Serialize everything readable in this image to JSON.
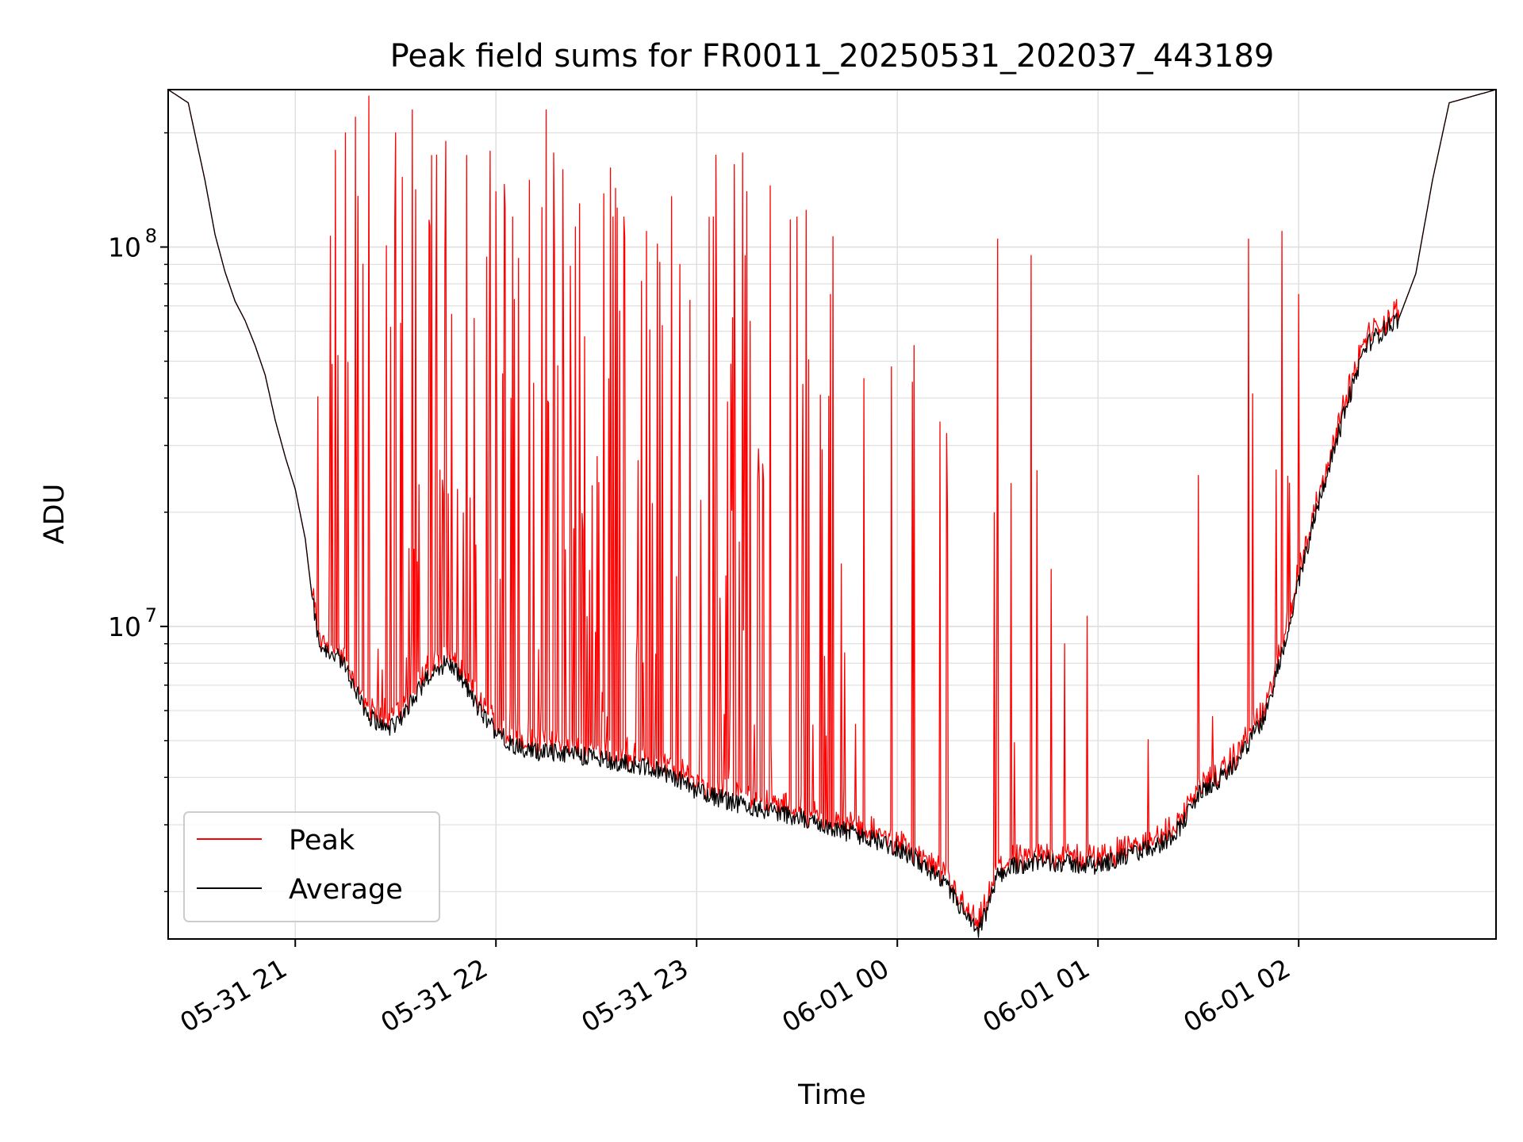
{
  "chart_data": {
    "type": "line",
    "title": "Peak field sums for FR0011_20250531_202037_443189",
    "xlabel": "Time",
    "ylabel": "ADU",
    "y_scale": "log",
    "ylim": [
      1500000,
      260000000
    ],
    "x_unit": "time of day (UTC)",
    "xlim": [
      "05-31 20:22",
      "06-01 02:59"
    ],
    "grid": true,
    "legend_position": "lower-left",
    "x_ticks": [
      {
        "t": "05-31 21:00",
        "label": "05-31 21"
      },
      {
        "t": "05-31 22:00",
        "label": "05-31 22"
      },
      {
        "t": "05-31 23:00",
        "label": "05-31 23"
      },
      {
        "t": "06-01 00:00",
        "label": "06-01 00"
      },
      {
        "t": "06-01 01:00",
        "label": "06-01 01"
      },
      {
        "t": "06-01 02:00",
        "label": "06-01 02"
      }
    ],
    "y_ticks": [
      {
        "v": 10000000,
        "base": "10",
        "exp": "7"
      },
      {
        "v": 100000000,
        "base": "10",
        "exp": "8"
      }
    ],
    "series": [
      {
        "name": "Average",
        "color": "#000000",
        "points": [
          [
            "05-31 20:22",
            260000000
          ],
          [
            "05-31 20:28",
            240000000
          ],
          [
            "05-31 20:33",
            150000000
          ],
          [
            "05-31 20:36",
            108000000
          ],
          [
            "05-31 20:39",
            86000000
          ],
          [
            "05-31 20:42",
            72000000
          ],
          [
            "05-31 20:45",
            64000000
          ],
          [
            "05-31 20:48",
            55000000
          ],
          [
            "05-31 20:51",
            46000000
          ],
          [
            "05-31 20:54",
            35000000
          ],
          [
            "05-31 20:57",
            28000000
          ],
          [
            "05-31 21:00",
            23000000
          ],
          [
            "05-31 21:03",
            17000000
          ],
          [
            "05-31 21:05",
            12000000
          ],
          [
            "05-31 21:07",
            9000000
          ],
          [
            "05-31 21:10",
            8600000
          ],
          [
            "05-31 21:14",
            8100000
          ],
          [
            "05-31 21:18",
            6800000
          ],
          [
            "05-31 21:22",
            5800000
          ],
          [
            "05-31 21:26",
            5500000
          ],
          [
            "05-31 21:30",
            5400000
          ],
          [
            "05-31 21:34",
            6200000
          ],
          [
            "05-31 21:38",
            7000000
          ],
          [
            "05-31 21:42",
            7800000
          ],
          [
            "05-31 21:46",
            8000000
          ],
          [
            "05-31 21:50",
            7200000
          ],
          [
            "05-31 21:55",
            6000000
          ],
          [
            "05-31 22:00",
            5300000
          ],
          [
            "05-31 22:05",
            4900000
          ],
          [
            "05-31 22:10",
            4700000
          ],
          [
            "05-31 22:15",
            4650000
          ],
          [
            "05-31 22:20",
            4650000
          ],
          [
            "05-31 22:30",
            4500000
          ],
          [
            "05-31 22:40",
            4350000
          ],
          [
            "05-31 22:50",
            4150000
          ],
          [
            "05-31 23:00",
            3700000
          ],
          [
            "05-31 23:10",
            3450000
          ],
          [
            "05-31 23:20",
            3300000
          ],
          [
            "05-31 23:30",
            3150000
          ],
          [
            "05-31 23:40",
            2950000
          ],
          [
            "05-31 23:50",
            2800000
          ],
          [
            "06-01 00:00",
            2600000
          ],
          [
            "06-01 00:05",
            2450000
          ],
          [
            "06-01 00:10",
            2250000
          ],
          [
            "06-01 00:15",
            2050000
          ],
          [
            "06-01 00:20",
            1750000
          ],
          [
            "06-01 00:24",
            1550000
          ],
          [
            "06-01 00:27",
            1800000
          ],
          [
            "06-01 00:30",
            2200000
          ],
          [
            "06-01 00:35",
            2350000
          ],
          [
            "06-01 00:45",
            2400000
          ],
          [
            "06-01 00:55",
            2350000
          ],
          [
            "06-01 01:00",
            2350000
          ],
          [
            "06-01 01:10",
            2500000
          ],
          [
            "06-01 01:20",
            2700000
          ],
          [
            "06-01 01:25",
            3000000
          ],
          [
            "06-01 01:30",
            3600000
          ],
          [
            "06-01 01:40",
            4200000
          ],
          [
            "06-01 01:50",
            5800000
          ],
          [
            "06-01 01:55",
            8500000
          ],
          [
            "06-01 02:00",
            13000000
          ],
          [
            "06-01 02:05",
            20000000
          ],
          [
            "06-01 02:10",
            28000000
          ],
          [
            "06-01 02:15",
            40000000
          ],
          [
            "06-01 02:20",
            55000000
          ],
          [
            "06-01 02:25",
            60000000
          ],
          [
            "06-01 02:30",
            65000000
          ],
          [
            "06-01 02:35",
            85000000
          ],
          [
            "06-01 02:40",
            150000000
          ],
          [
            "06-01 02:45",
            240000000
          ],
          [
            "06-01 02:59",
            260000000
          ]
        ]
      },
      {
        "name": "Peak",
        "color": "#ff0000",
        "note_spikes": [
          [
            "05-31 21:05",
            12000000
          ],
          [
            "05-31 21:12",
            180000000
          ],
          [
            "05-31 21:15",
            200000000
          ],
          [
            "05-31 21:18",
            220000000
          ],
          [
            "05-31 21:22",
            250000000
          ],
          [
            "05-31 21:30",
            200000000
          ],
          [
            "05-31 21:35",
            230000000
          ],
          [
            "05-31 21:45",
            190000000
          ],
          [
            "05-31 22:00",
            140000000
          ],
          [
            "05-31 22:05",
            120000000
          ],
          [
            "05-31 22:10",
            150000000
          ],
          [
            "05-31 22:15",
            230000000
          ],
          [
            "05-31 22:20",
            160000000
          ],
          [
            "05-31 22:25",
            130000000
          ],
          [
            "05-31 22:35",
            120000000
          ],
          [
            "05-31 22:45",
            110000000
          ],
          [
            "05-31 22:55",
            90000000
          ],
          [
            "05-31 23:05",
            120000000
          ],
          [
            "05-31 23:15",
            140000000
          ],
          [
            "05-31 23:22",
            145000000
          ],
          [
            "05-31 23:30",
            120000000
          ],
          [
            "05-31 23:40",
            75000000
          ],
          [
            "05-31 23:50",
            45000000
          ],
          [
            "06-01 00:05",
            55000000
          ],
          [
            "06-01 00:15",
            20000000
          ],
          [
            "06-01 00:30",
            105000000
          ],
          [
            "06-01 00:40",
            95000000
          ],
          [
            "06-01 00:50",
            9000000
          ],
          [
            "06-01 01:30",
            25000000
          ],
          [
            "06-01 01:45",
            105000000
          ],
          [
            "06-01 01:55",
            110000000
          ],
          [
            "06-01 02:00",
            75000000
          ]
        ]
      }
    ]
  }
}
